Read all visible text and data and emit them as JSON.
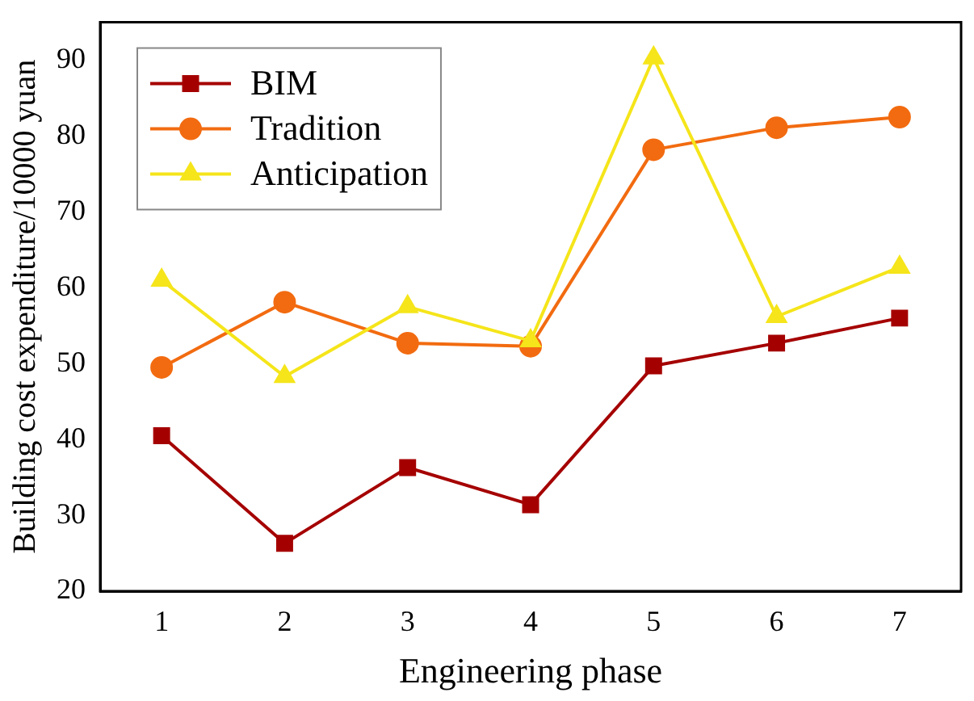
{
  "chart_data": {
    "type": "line",
    "xlabel": "Engineering phase",
    "ylabel": "Building cost expenditure/10000 yuan",
    "x": [
      1,
      2,
      3,
      4,
      5,
      6,
      7
    ],
    "series": [
      {
        "name": "BIM",
        "color": "#a50000",
        "marker": "square",
        "values": [
          40.5,
          26.3,
          36.3,
          31.4,
          49.7,
          52.7,
          56.0
        ]
      },
      {
        "name": "Tradition",
        "color": "#f26b10",
        "marker": "circle",
        "values": [
          49.5,
          58.1,
          52.7,
          52.3,
          78.2,
          81.1,
          82.5
        ]
      },
      {
        "name": "Anticipation",
        "color": "#f5e51a",
        "marker": "triangle",
        "values": [
          61.0,
          48.3,
          57.5,
          53.0,
          90.3,
          56.2,
          62.7
        ]
      }
    ],
    "xlim": [
      0.5,
      7.5
    ],
    "xticks": [
      1,
      2,
      3,
      4,
      5,
      6,
      7
    ],
    "ylim": [
      20,
      95
    ],
    "yticks": [
      20,
      30,
      40,
      50,
      60,
      70,
      80,
      90
    ],
    "grid": false,
    "legend": "top left",
    "line_style": "solid"
  }
}
